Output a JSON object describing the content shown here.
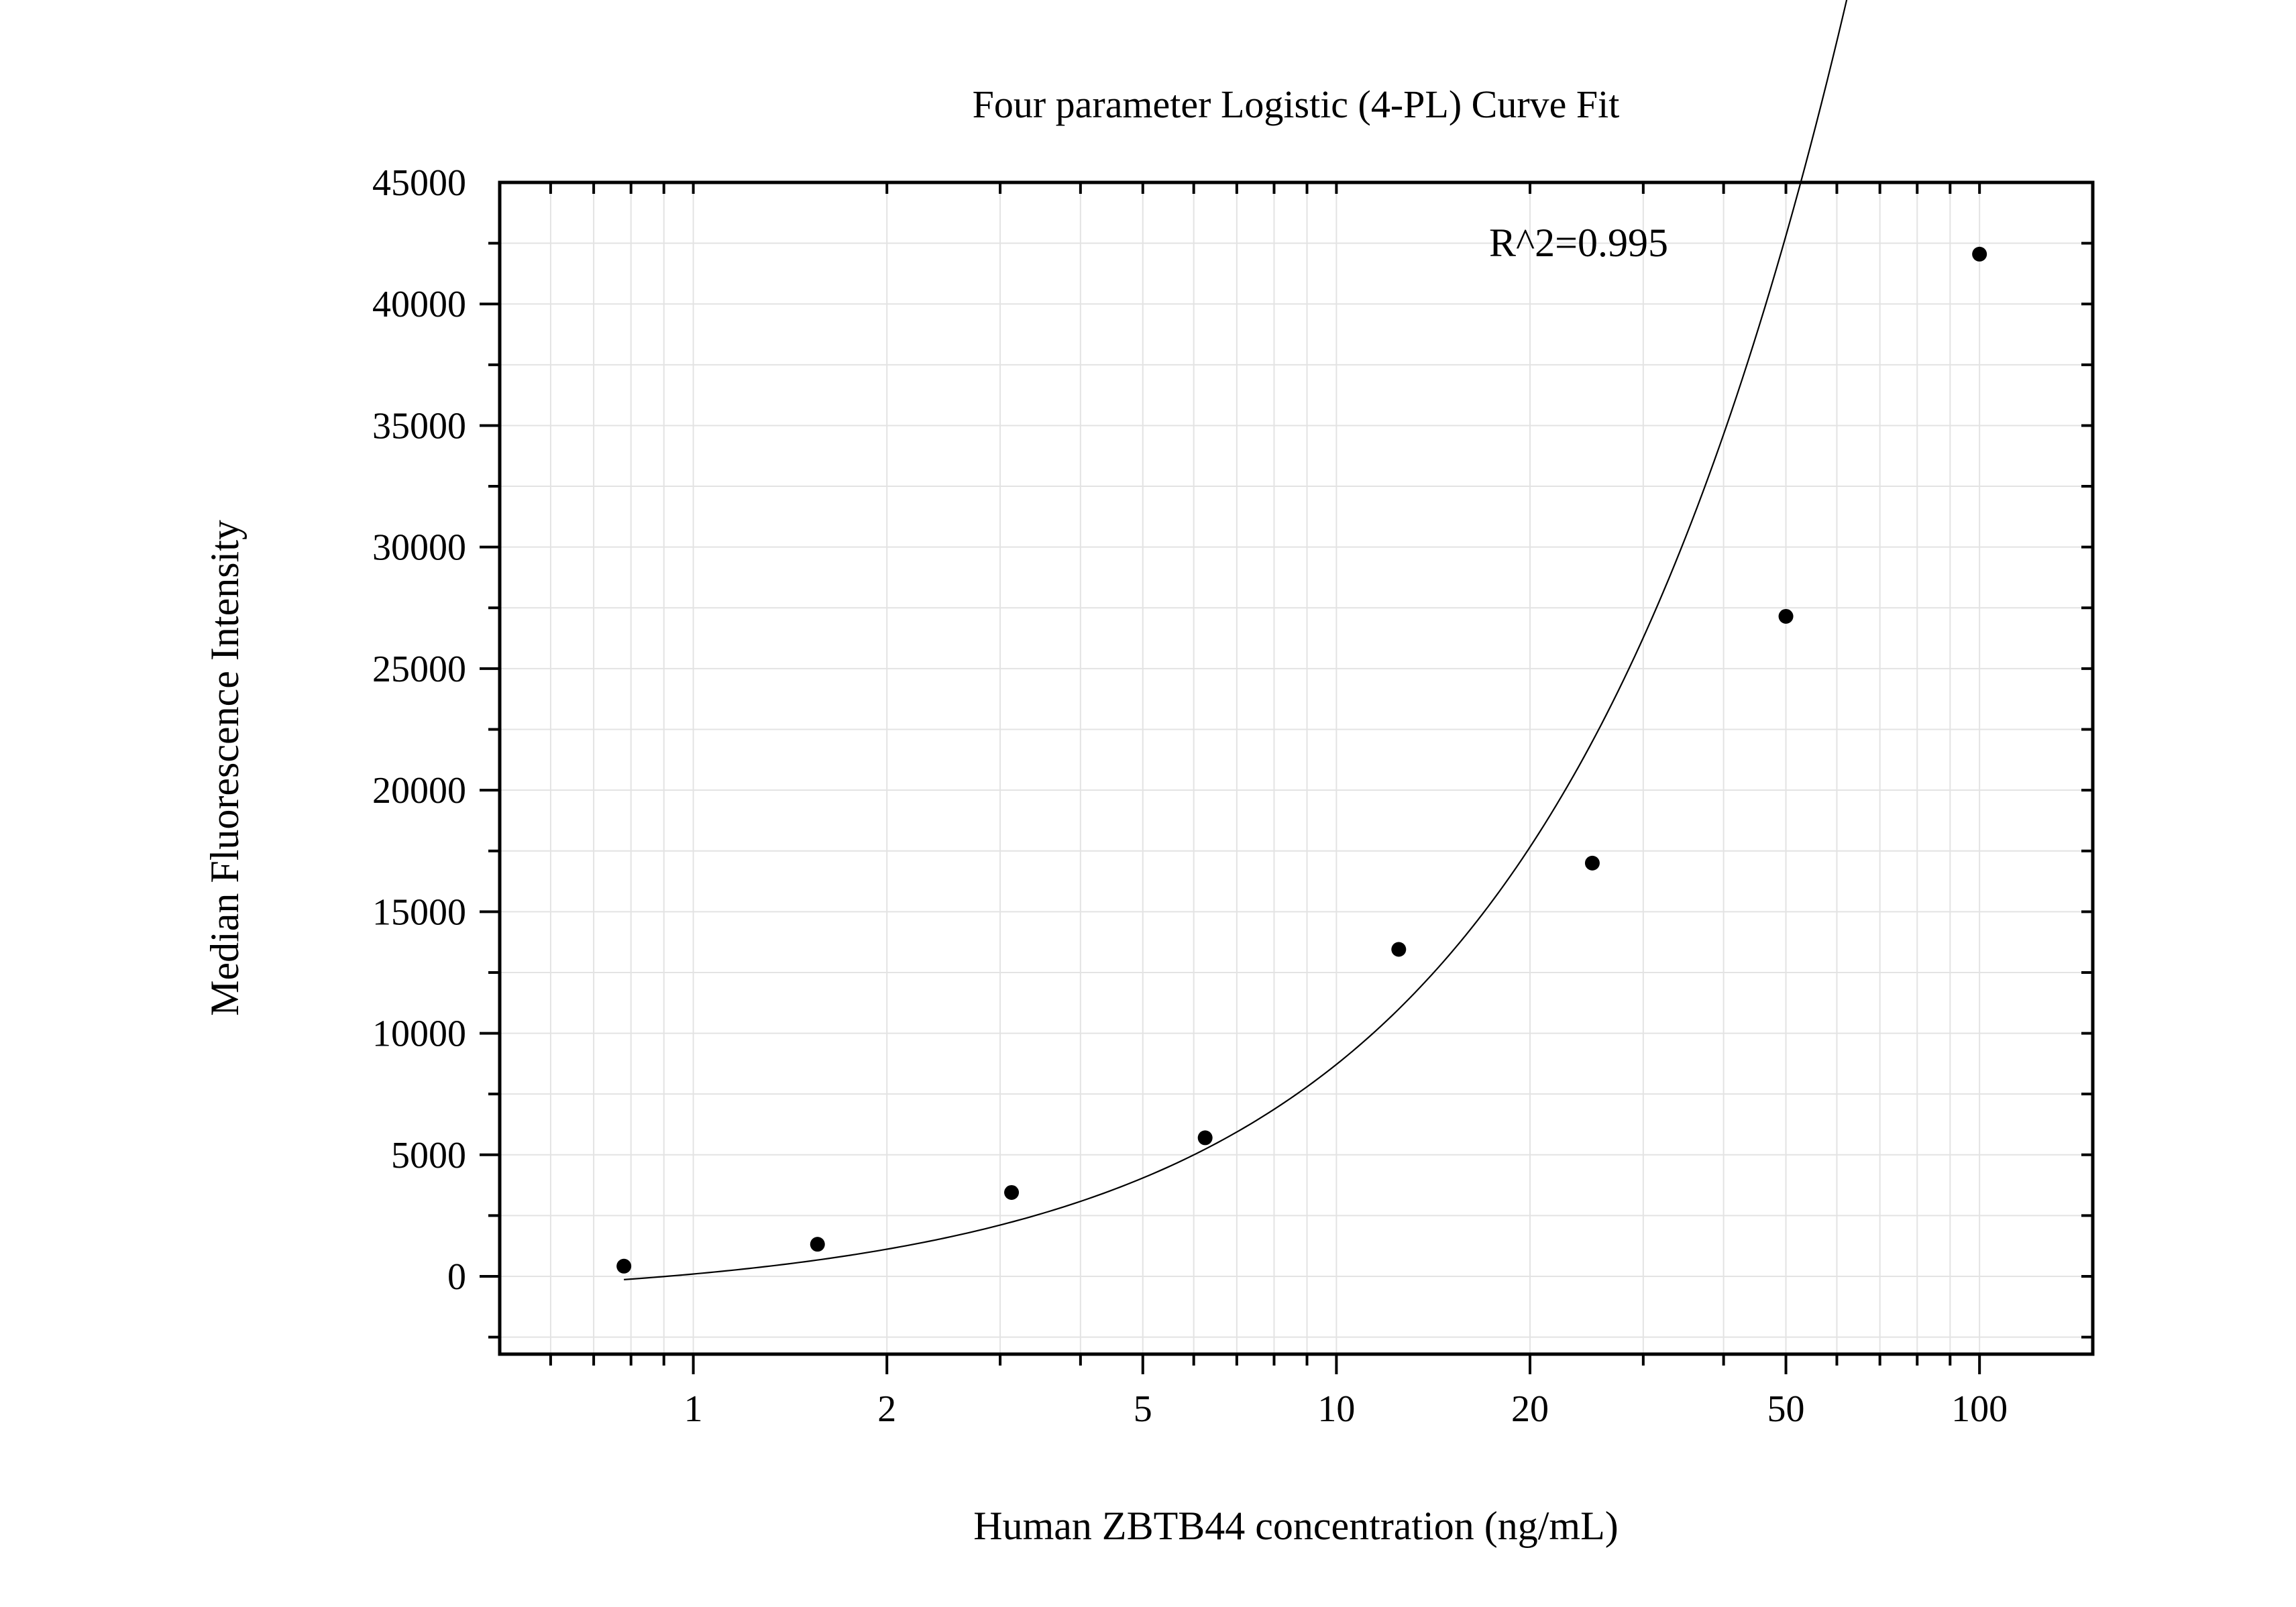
{
  "chart_data": {
    "type": "scatter",
    "title": "Four parameter Logistic (4-PL) Curve Fit",
    "xlabel": "Human ZBTB44 concentration (ng/mL)",
    "ylabel": "Median Fluorescence Intensity",
    "x_scale": "log",
    "xlim": [
      0.5,
      150
    ],
    "ylim": [
      -3200,
      45000
    ],
    "x_ticks": [
      1,
      2,
      5,
      10,
      20,
      50,
      100
    ],
    "x_tick_labels": [
      "1",
      "2",
      "5",
      "10",
      "20",
      "50",
      "100"
    ],
    "y_ticks": [
      0,
      5000,
      10000,
      15000,
      20000,
      25000,
      30000,
      35000,
      40000,
      45000
    ],
    "y_tick_labels": [
      "0",
      "5000",
      "10000",
      "15000",
      "20000",
      "25000",
      "30000",
      "35000",
      "40000",
      "45000"
    ],
    "grid": true,
    "annotation": "R^2=0.995",
    "points": [
      {
        "x": 0.78,
        "y": 420
      },
      {
        "x": 1.56,
        "y": 1320
      },
      {
        "x": 3.125,
        "y": 3450
      },
      {
        "x": 6.25,
        "y": 5700
      },
      {
        "x": 12.5,
        "y": 13450
      },
      {
        "x": 25,
        "y": 17000
      },
      {
        "x": 50,
        "y": 27150
      },
      {
        "x": 100,
        "y": 42050
      }
    ],
    "fit_curve": {
      "model": "4PL",
      "A": -1000,
      "B": 0.95,
      "C": 2000,
      "D": 1500000,
      "x_range": [
        0.78,
        100
      ]
    }
  }
}
